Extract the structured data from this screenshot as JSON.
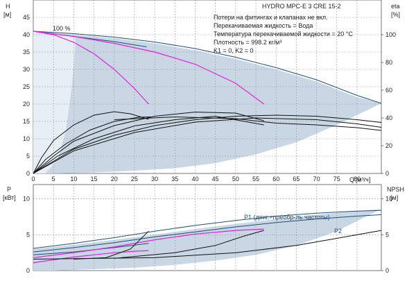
{
  "header": {
    "title": "HYDRO MPC-E 3 CRE 15-2"
  },
  "notes": [
    "Потери на фитингах и клапанах не вкл.",
    "Перекачиваемая жидкость = Вода",
    "Температура перекачиваемой жидкости = 20 °C",
    "Плотность = 998.2 кг/м³",
    "K1 = 0, K2 = 0"
  ],
  "colors": {
    "envelope": "#c9d6e3",
    "lightfill": "#e8eef5",
    "blue": "#1f4e79",
    "magenta": "#e020e0",
    "black": "#111111",
    "grid": "#999999"
  },
  "chart_data": [
    {
      "type": "line",
      "name": "head-efficiency",
      "ylabel": "H",
      "yunit": "[м]",
      "y2label": "eta",
      "y2unit": "[%]",
      "xlabel": "Q",
      "xunit": "[м³/ч]",
      "xlim": [
        0,
        86
      ],
      "ylim": [
        0,
        50
      ],
      "y2lim": [
        0,
        125
      ],
      "xticks": [
        0,
        5,
        10,
        15,
        20,
        25,
        30,
        35,
        40,
        45,
        50,
        55,
        60,
        65,
        70,
        75,
        80
      ],
      "yticks": [
        0,
        5,
        10,
        15,
        20,
        25,
        30,
        35,
        40,
        45
      ],
      "y2ticks": [
        0,
        20,
        40,
        60,
        80,
        100
      ],
      "label_100": "100 %",
      "envelope": [
        [
          0,
          41
        ],
        [
          10,
          40
        ],
        [
          20,
          39
        ],
        [
          30,
          37.5
        ],
        [
          40,
          35.5
        ],
        [
          50,
          33
        ],
        [
          60,
          30
        ],
        [
          70,
          26.5
        ],
        [
          80,
          22
        ],
        [
          86,
          20.2
        ],
        [
          75,
          14
        ],
        [
          65,
          9
        ],
        [
          55,
          5.5
        ],
        [
          45,
          3
        ],
        [
          35,
          1.5
        ],
        [
          25,
          0.8
        ],
        [
          15,
          0.3
        ],
        [
          5,
          0
        ],
        [
          0,
          0
        ]
      ],
      "light_region": [
        [
          0,
          41
        ],
        [
          5,
          40.6
        ],
        [
          10,
          39.5
        ],
        [
          10.5,
          38
        ],
        [
          9.5,
          25
        ],
        [
          8,
          12
        ],
        [
          6,
          4
        ],
        [
          3,
          0
        ],
        [
          0,
          0
        ]
      ],
      "series": [
        {
          "color": "blue",
          "points": [
            [
              0,
              41
            ],
            [
              10,
              40.3
            ],
            [
              20,
              39.3
            ],
            [
              30,
              37.9
            ],
            [
              40,
              36
            ],
            [
              50,
              33.5
            ],
            [
              60,
              30.5
            ],
            [
              70,
              27
            ],
            [
              80,
              22.5
            ],
            [
              86,
              20.2
            ]
          ]
        },
        {
          "color": "blue",
          "points": [
            [
              0,
              41
            ],
            [
              10,
              39.5
            ],
            [
              20,
              38
            ],
            [
              28,
              36.5
            ]
          ]
        },
        {
          "color": "magenta",
          "points": [
            [
              0,
              41
            ],
            [
              5,
              40
            ],
            [
              10,
              37.8
            ],
            [
              15,
              34.5
            ],
            [
              20,
              30
            ],
            [
              25,
              24.5
            ],
            [
              28.5,
              20
            ]
          ]
        },
        {
          "color": "magenta",
          "points": [
            [
              0,
              41
            ],
            [
              10,
              39.5
            ],
            [
              20,
              37.5
            ],
            [
              30,
              35
            ],
            [
              40,
              31.5
            ],
            [
              50,
              26
            ],
            [
              57,
              20
            ]
          ]
        },
        {
          "color": "black",
          "points": [
            [
              0,
              0
            ],
            [
              2,
              4.5
            ],
            [
              5,
              9.5
            ],
            [
              10,
              14
            ],
            [
              15,
              16.8
            ],
            [
              20,
              17.8
            ],
            [
              24,
              17.2
            ],
            [
              28.5,
              15.6
            ]
          ]
        },
        {
          "color": "black",
          "points": [
            [
              0,
              0
            ],
            [
              3,
              4
            ],
            [
              8,
              8.5
            ],
            [
              14,
              12.5
            ],
            [
              20,
              15
            ],
            [
              26,
              16.2
            ],
            [
              29,
              16.3
            ]
          ]
        },
        {
          "color": "black",
          "points": [
            [
              0,
              0
            ],
            [
              5,
              5
            ],
            [
              10,
              9.3
            ],
            [
              20,
              13.8
            ],
            [
              30,
              16.5
            ],
            [
              40,
              17.7
            ],
            [
              50,
              17.4
            ],
            [
              57,
              15.2
            ]
          ]
        },
        {
          "color": "black",
          "points": [
            [
              0,
              0
            ],
            [
              6,
              5
            ],
            [
              15,
              10
            ],
            [
              25,
              13.7
            ],
            [
              35,
              15.5
            ],
            [
              45,
              16.5
            ],
            [
              57,
              14
            ]
          ]
        },
        {
          "color": "black",
          "points": [
            [
              0,
              0
            ],
            [
              10,
              7
            ],
            [
              20,
              11
            ],
            [
              30,
              13.8
            ],
            [
              40,
              15.5
            ],
            [
              50,
              16.5
            ],
            [
              60,
              16.8
            ],
            [
              70,
              16.5
            ],
            [
              80,
              15.5
            ],
            [
              86,
              14.7
            ]
          ]
        },
        {
          "color": "black",
          "points": [
            [
              0,
              0
            ],
            [
              10,
              6.5
            ],
            [
              25,
              11.8
            ],
            [
              40,
              14.8
            ],
            [
              55,
              16
            ],
            [
              70,
              15.5
            ],
            [
              80,
              14.3
            ],
            [
              86,
              13.3
            ]
          ]
        },
        {
          "color": "black",
          "points": [
            [
              20,
              15.5
            ],
            [
              35,
              16.3
            ],
            [
              50,
              15.8
            ],
            [
              60,
              14.5
            ],
            [
              70,
              14
            ],
            [
              80,
              13.2
            ],
            [
              86,
              12.4
            ]
          ]
        }
      ]
    },
    {
      "type": "line",
      "name": "power-npsh",
      "ylabel": "P",
      "yunit": "[кВт]",
      "y2label": "NPSH",
      "y2unit": "[м]",
      "xlim": [
        0,
        86
      ],
      "ylim": [
        0,
        12
      ],
      "y2lim": [
        0,
        12
      ],
      "yticks": [
        0,
        5,
        10
      ],
      "y2ticks": [
        0,
        5,
        10
      ],
      "envelope": [
        [
          0,
          3
        ],
        [
          10,
          3.6
        ],
        [
          20,
          4.3
        ],
        [
          30,
          5
        ],
        [
          40,
          5.8
        ],
        [
          50,
          6.5
        ],
        [
          60,
          7.2
        ],
        [
          70,
          7.8
        ],
        [
          80,
          8.3
        ],
        [
          86,
          8.6
        ],
        [
          75,
          5.5
        ],
        [
          65,
          3.5
        ],
        [
          55,
          2.2
        ],
        [
          45,
          1.4
        ],
        [
          35,
          0.8
        ],
        [
          25,
          0.4
        ],
        [
          15,
          0.2
        ],
        [
          5,
          0
        ],
        [
          0,
          0
        ]
      ],
      "series": [
        {
          "color": "blue",
          "name": "P1 (двиг.+преобр-ль частоты)",
          "points": [
            [
              0,
              3.1
            ],
            [
              10,
              3.8
            ],
            [
              20,
              4.6
            ],
            [
              30,
              5.5
            ],
            [
              40,
              6.3
            ],
            [
              50,
              7
            ],
            [
              60,
              7.6
            ],
            [
              70,
              8
            ],
            [
              80,
              8.3
            ],
            [
              86,
              8.4
            ]
          ]
        },
        {
          "color": "blue",
          "name": "P2",
          "points": [
            [
              0,
              2.6
            ],
            [
              10,
              3.2
            ],
            [
              20,
              3.9
            ],
            [
              30,
              4.7
            ],
            [
              40,
              5.4
            ],
            [
              50,
              6.1
            ],
            [
              60,
              6.7
            ],
            [
              70,
              7.2
            ],
            [
              80,
              7.6
            ],
            [
              86,
              7.8
            ]
          ]
        },
        {
          "color": "blue",
          "points": [
            [
              0,
              2.2
            ],
            [
              10,
              2.6
            ],
            [
              20,
              3.2
            ],
            [
              28.5,
              3.8
            ]
          ]
        },
        {
          "color": "magenta",
          "points": [
            [
              0,
              1.1
            ],
            [
              5,
              1.5
            ],
            [
              10,
              1.9
            ],
            [
              15,
              2.2
            ],
            [
              20,
              2.5
            ],
            [
              25,
              2.7
            ],
            [
              28.5,
              2.8
            ]
          ]
        },
        {
          "color": "magenta",
          "points": [
            [
              0,
              1.8
            ],
            [
              10,
              2.5
            ],
            [
              20,
              3.3
            ],
            [
              30,
              4.3
            ],
            [
              40,
              5.1
            ],
            [
              50,
              5.6
            ],
            [
              57,
              5.8
            ]
          ]
        },
        {
          "color": "black",
          "points": [
            [
              10,
              1.6
            ],
            [
              18,
              1.8
            ],
            [
              24,
              3
            ],
            [
              28.5,
              5.5
            ]
          ]
        },
        {
          "color": "black",
          "points": [
            [
              20,
              1.7
            ],
            [
              35,
              2.5
            ],
            [
              45,
              3.5
            ],
            [
              52,
              4.8
            ],
            [
              57,
              5.6
            ]
          ]
        },
        {
          "color": "black",
          "points": [
            [
              0,
              1.6
            ],
            [
              30,
              1.8
            ],
            [
              50,
              2.5
            ],
            [
              65,
              3.5
            ],
            [
              75,
              4.5
            ],
            [
              86,
              5.6
            ]
          ]
        }
      ]
    }
  ]
}
